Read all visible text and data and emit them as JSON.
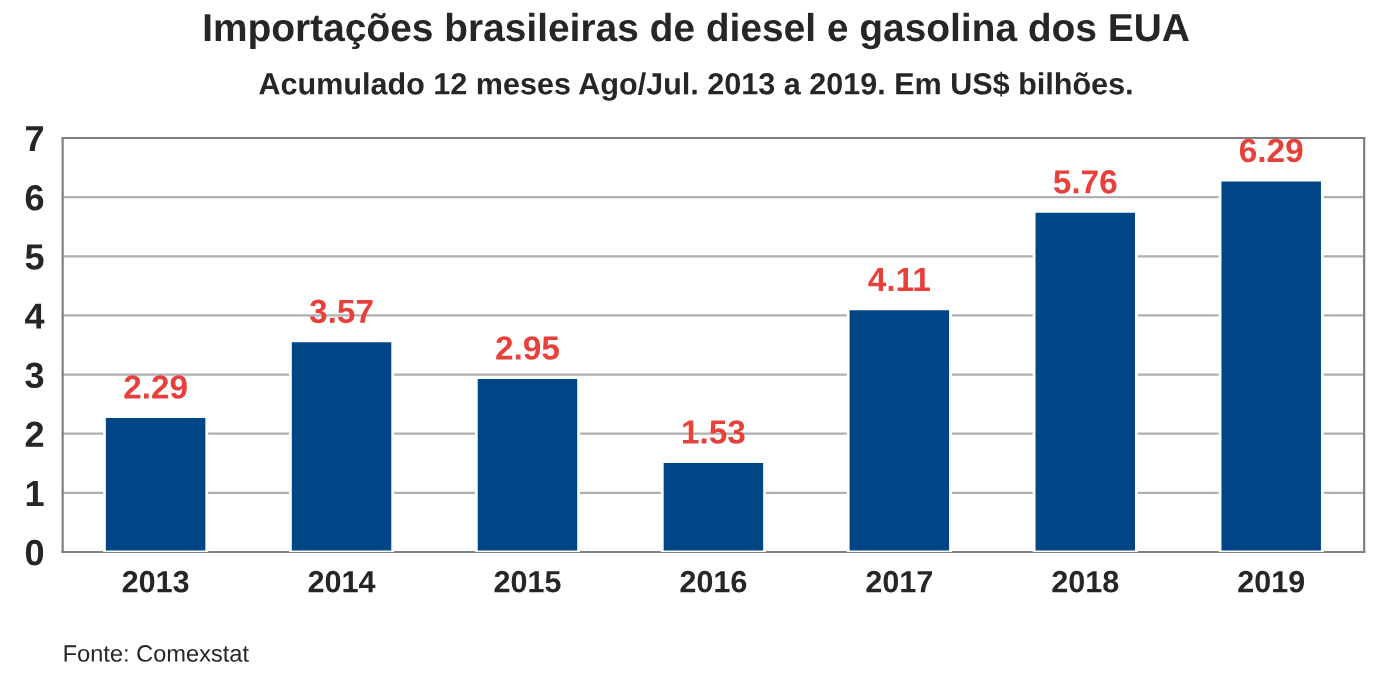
{
  "chart_data": {
    "type": "bar",
    "title": "Importações brasileiras de diesel e gasolina dos EUA",
    "subtitle": "Acumulado 12 meses Ago/Jul. 2013 a 2019. Em US$ bilhões.",
    "categories": [
      "2013",
      "2014",
      "2015",
      "2016",
      "2017",
      "2018",
      "2019"
    ],
    "values": [
      2.29,
      3.57,
      2.95,
      1.53,
      4.11,
      5.76,
      6.29
    ],
    "color": "#004586",
    "data_labels": true,
    "ylim": [
      0,
      7
    ],
    "yticks": [
      0,
      1,
      2,
      3,
      4,
      5,
      6,
      7
    ],
    "grid": "y",
    "annotations": [
      "Fonte: Comexstat"
    ]
  }
}
